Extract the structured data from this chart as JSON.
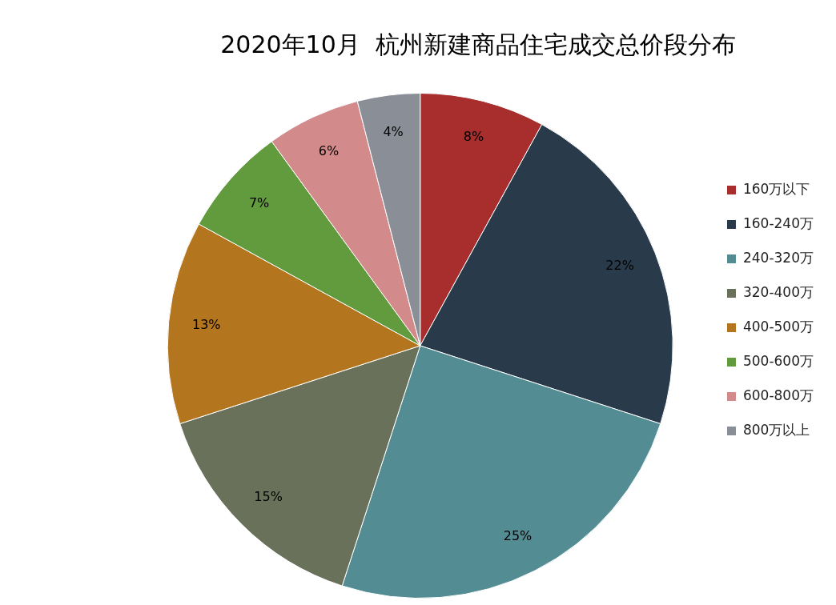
{
  "chart_data": {
    "type": "pie",
    "title": "2020年10月  杭州新建商品住宅成交总价段分布",
    "categories": [
      "160万以下",
      "160-240万",
      "240-320万",
      "320-400万",
      "400-500万",
      "500-600万",
      "600-800万",
      "800万以上"
    ],
    "values": [
      8,
      22,
      25,
      15,
      13,
      7,
      6,
      4
    ],
    "value_labels": [
      "8%",
      "22%",
      "25%",
      "15%",
      "13%",
      "7%",
      "6%",
      "4%"
    ],
    "colors": [
      "#a82d2d",
      "#293b4b",
      "#548c94",
      "#69715a",
      "#b3761e",
      "#629a3e",
      "#d38a8a",
      "#8a8e96"
    ],
    "legend": "right"
  }
}
